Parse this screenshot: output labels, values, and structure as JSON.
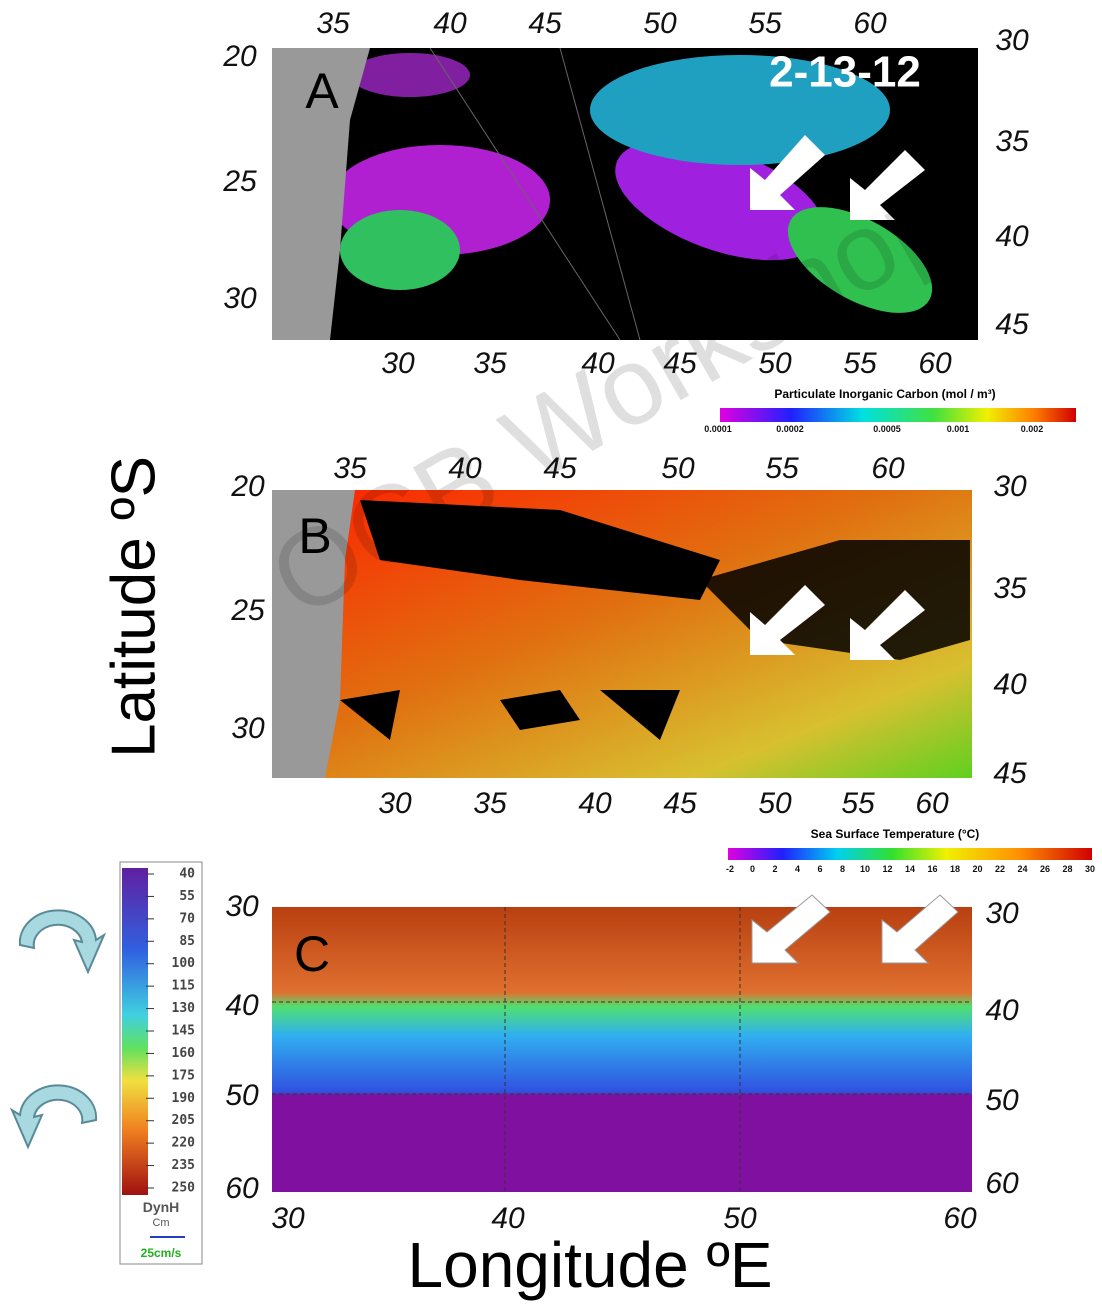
{
  "axis_labels": {
    "y": "Latitude ºS",
    "x": "Longitude ºE"
  },
  "watermark": "OCB Workshop",
  "panels": [
    {
      "label": "A",
      "date": "2-13-12",
      "top_ticks": [
        35,
        40,
        45,
        50,
        55,
        60
      ],
      "bottom_ticks": [
        30,
        35,
        40,
        45,
        50,
        55,
        60
      ],
      "left_ticks": [
        20,
        25,
        30
      ],
      "right_ticks": [
        30,
        35,
        40,
        45
      ],
      "colorbar": {
        "title": "Particulate Inorganic Carbon (mol / m³)",
        "ticks": [
          "0.0001",
          "0.0002",
          "0.0005",
          "0.001",
          "0.002"
        ]
      }
    },
    {
      "label": "B",
      "top_ticks": [
        35,
        40,
        45,
        50,
        55,
        60
      ],
      "bottom_ticks": [
        30,
        35,
        40,
        45,
        50,
        55,
        60
      ],
      "left_ticks": [
        20,
        25,
        30
      ],
      "right_ticks": [
        30,
        35,
        40,
        45
      ],
      "colorbar": {
        "title": "Sea Surface Temperature (°C)",
        "ticks": [
          -2,
          0,
          2,
          4,
          6,
          8,
          10,
          12,
          14,
          16,
          18,
          20,
          22,
          24,
          26,
          28,
          30
        ]
      }
    },
    {
      "label": "C",
      "bottom_ticks": [
        30,
        40,
        50,
        60
      ],
      "left_ticks": [
        30,
        40,
        50,
        60
      ],
      "right_ticks": [
        30,
        40,
        50,
        60
      ],
      "legend": {
        "ticks": [
          40,
          55,
          70,
          85,
          100,
          115,
          130,
          145,
          160,
          175,
          190,
          205,
          220,
          235,
          250
        ],
        "title": "DynH",
        "unit": "Cm",
        "scale": "25cm/s"
      }
    }
  ]
}
